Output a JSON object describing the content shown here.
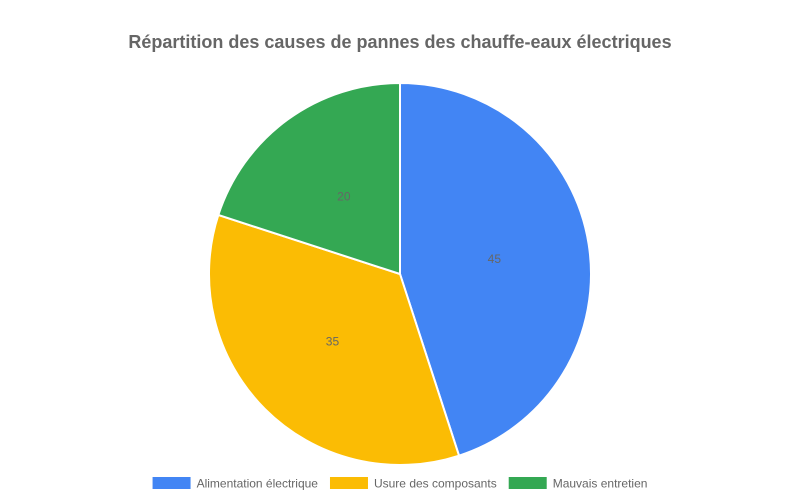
{
  "chart_data": {
    "type": "pie",
    "title": "Répartition des causes de pannes des chauffe-eaux électriques",
    "categories": [
      "Alimentation électrique",
      "Usure des composants",
      "Mauvais entretien"
    ],
    "values": [
      45,
      35,
      20
    ],
    "colors": [
      "#4285f4",
      "#fbbc04",
      "#34a853"
    ],
    "start_angle_deg": 0,
    "direction": "clockwise",
    "show_value_labels": true,
    "legend_position": "bottom"
  }
}
